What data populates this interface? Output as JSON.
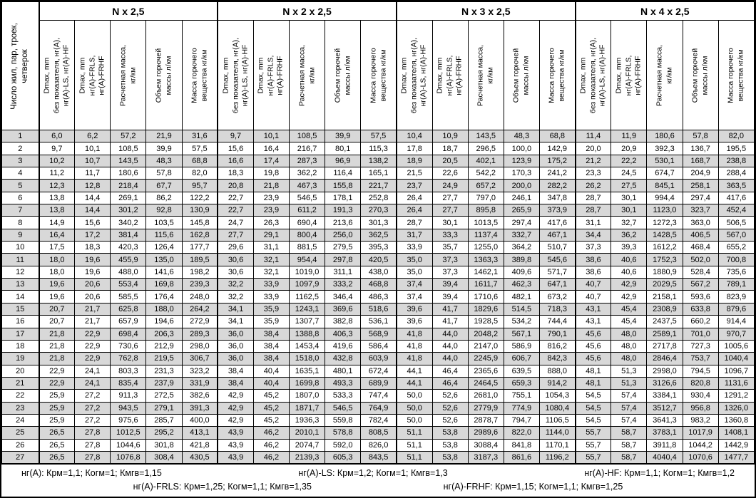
{
  "table": {
    "row_header_label": "Число жил, пар, троек,\nчетверок",
    "groups": [
      {
        "label": "N x 2,5"
      },
      {
        "label": "N x 2 x 2,5"
      },
      {
        "label": "N x 3 x 2,5"
      },
      {
        "label": "N x 4 x 2,5"
      }
    ],
    "sub_headers": [
      "Dmax, mm\nбез показателя, нг(А),\nнг(А)-LS, нг(А)-HF",
      "Dmax, mm\nнг(А)-FRLS,\nнг(А)-FRHF",
      "Расчетная масса,\nкг/км",
      "Объем горючей\nмассы л/км",
      "Масса горючего\nвещества кг/км"
    ],
    "rows": [
      {
        "num": "1",
        "values": [
          "6,0",
          "6,2",
          "57,2",
          "21,9",
          "31,6",
          "9,7",
          "10,1",
          "108,5",
          "39,9",
          "57,5",
          "10,4",
          "10,9",
          "143,5",
          "48,3",
          "68,8",
          "11,4",
          "11,9",
          "180,6",
          "57,8",
          "82,0"
        ]
      },
      {
        "num": "2",
        "values": [
          "9,7",
          "10,1",
          "108,5",
          "39,9",
          "57,5",
          "15,6",
          "16,4",
          "216,7",
          "80,1",
          "115,3",
          "17,8",
          "18,7",
          "296,5",
          "100,0",
          "142,9",
          "20,0",
          "20,9",
          "392,3",
          "136,7",
          "195,5"
        ]
      },
      {
        "num": "3",
        "values": [
          "10,2",
          "10,7",
          "143,5",
          "48,3",
          "68,8",
          "16,6",
          "17,4",
          "287,3",
          "96,9",
          "138,2",
          "18,9",
          "20,5",
          "402,1",
          "123,9",
          "175,2",
          "21,2",
          "22,2",
          "530,1",
          "168,7",
          "238,8"
        ]
      },
      {
        "num": "4",
        "values": [
          "11,2",
          "11,7",
          "180,6",
          "57,8",
          "82,0",
          "18,3",
          "19,8",
          "362,2",
          "116,4",
          "165,1",
          "21,5",
          "22,6",
          "542,2",
          "170,3",
          "241,2",
          "23,3",
          "24,5",
          "674,7",
          "204,9",
          "288,4"
        ]
      },
      {
        "num": "5",
        "values": [
          "12,3",
          "12,8",
          "218,4",
          "67,7",
          "95,7",
          "20,8",
          "21,8",
          "467,3",
          "155,8",
          "221,7",
          "23,7",
          "24,9",
          "657,2",
          "200,0",
          "282,2",
          "26,2",
          "27,5",
          "845,1",
          "258,1",
          "363,5"
        ]
      },
      {
        "num": "6",
        "values": [
          "13,8",
          "14,4",
          "269,1",
          "86,2",
          "122,2",
          "22,7",
          "23,9",
          "546,5",
          "178,1",
          "252,8",
          "26,4",
          "27,7",
          "797,0",
          "246,1",
          "347,8",
          "28,7",
          "30,1",
          "994,4",
          "297,4",
          "417,6"
        ]
      },
      {
        "num": "7",
        "values": [
          "13,8",
          "14,4",
          "301,2",
          "92,8",
          "130,9",
          "22,7",
          "23,9",
          "611,2",
          "191,3",
          "270,3",
          "26,4",
          "27,7",
          "895,8",
          "265,9",
          "373,9",
          "28,7",
          "30,1",
          "1123,0",
          "323,7",
          "452,4"
        ]
      },
      {
        "num": "8",
        "values": [
          "14,9",
          "15,6",
          "340,2",
          "103,5",
          "145,8",
          "24,7",
          "26,3",
          "690,4",
          "213,6",
          "301,3",
          "28,7",
          "30,1",
          "1013,5",
          "297,4",
          "417,6",
          "31,1",
          "32,7",
          "1272,3",
          "363,0",
          "506,5"
        ]
      },
      {
        "num": "9",
        "values": [
          "16,4",
          "17,2",
          "381,4",
          "115,6",
          "162,8",
          "27,7",
          "29,1",
          "800,4",
          "256,0",
          "362,5",
          "31,7",
          "33,3",
          "1137,4",
          "332,7",
          "467,1",
          "34,4",
          "36,2",
          "1428,5",
          "406,5",
          "567,0"
        ]
      },
      {
        "num": "10",
        "values": [
          "17,5",
          "18,3",
          "420,3",
          "126,4",
          "177,7",
          "29,6",
          "31,1",
          "881,5",
          "279,5",
          "395,3",
          "33,9",
          "35,7",
          "1255,0",
          "364,2",
          "510,7",
          "37,3",
          "39,3",
          "1612,2",
          "468,4",
          "655,2"
        ]
      },
      {
        "num": "11",
        "values": [
          "18,0",
          "19,6",
          "455,9",
          "135,0",
          "189,5",
          "30,6",
          "32,1",
          "954,4",
          "297,8",
          "420,5",
          "35,0",
          "37,3",
          "1363,3",
          "389,8",
          "545,6",
          "38,6",
          "40,6",
          "1752,3",
          "502,0",
          "700,8"
        ]
      },
      {
        "num": "12",
        "values": [
          "18,0",
          "19,6",
          "488,0",
          "141,6",
          "198,2",
          "30,6",
          "32,1",
          "1019,0",
          "311,1",
          "438,0",
          "35,0",
          "37,3",
          "1462,1",
          "409,6",
          "571,7",
          "38,6",
          "40,6",
          "1880,9",
          "528,4",
          "735,6"
        ]
      },
      {
        "num": "13",
        "values": [
          "19,6",
          "20,6",
          "553,4",
          "169,8",
          "239,3",
          "32,2",
          "33,9",
          "1097,9",
          "333,2",
          "468,8",
          "37,4",
          "39,4",
          "1611,7",
          "462,3",
          "647,1",
          "40,7",
          "42,9",
          "2029,5",
          "567,2",
          "789,1"
        ]
      },
      {
        "num": "14",
        "values": [
          "19,6",
          "20,6",
          "585,5",
          "176,4",
          "248,0",
          "32,2",
          "33,9",
          "1162,5",
          "346,4",
          "486,3",
          "37,4",
          "39,4",
          "1710,6",
          "482,1",
          "673,2",
          "40,7",
          "42,9",
          "2158,1",
          "593,6",
          "823,9"
        ]
      },
      {
        "num": "15",
        "values": [
          "20,7",
          "21,7",
          "625,8",
          "188,0",
          "264,2",
          "34,1",
          "35,9",
          "1243,1",
          "369,6",
          "518,6",
          "39,6",
          "41,7",
          "1829,6",
          "514,5",
          "718,3",
          "43,1",
          "45,4",
          "2308,9",
          "633,8",
          "879,6"
        ]
      },
      {
        "num": "16",
        "values": [
          "20,7",
          "21,7",
          "657,9",
          "194,6",
          "272,9",
          "34,1",
          "35,9",
          "1307,7",
          "382,8",
          "536,1",
          "39,6",
          "41,7",
          "1928,5",
          "534,2",
          "744,4",
          "43,1",
          "45,4",
          "2437,5",
          "660,2",
          "914,4"
        ]
      },
      {
        "num": "17",
        "values": [
          "21,8",
          "22,9",
          "698,4",
          "206,3",
          "289,3",
          "36,0",
          "38,4",
          "1388,8",
          "406,3",
          "568,9",
          "41,8",
          "44,0",
          "2048,2",
          "567,1",
          "790,1",
          "45,6",
          "48,0",
          "2589,1",
          "701,0",
          "970,7"
        ]
      },
      {
        "num": "18",
        "values": [
          "21,8",
          "22,9",
          "730,6",
          "212,9",
          "298,0",
          "36,0",
          "38,4",
          "1453,4",
          "419,6",
          "586,4",
          "41,8",
          "44,0",
          "2147,0",
          "586,9",
          "816,2",
          "45,6",
          "48,0",
          "2717,8",
          "727,3",
          "1005,6"
        ]
      },
      {
        "num": "19",
        "values": [
          "21,8",
          "22,9",
          "762,8",
          "219,5",
          "306,7",
          "36,0",
          "38,4",
          "1518,0",
          "432,8",
          "603,9",
          "41,8",
          "44,0",
          "2245,9",
          "606,7",
          "842,3",
          "45,6",
          "48,0",
          "2846,4",
          "753,7",
          "1040,4"
        ]
      },
      {
        "num": "20",
        "values": [
          "22,9",
          "24,1",
          "803,3",
          "231,3",
          "323,2",
          "38,4",
          "40,4",
          "1635,1",
          "480,1",
          "672,4",
          "44,1",
          "46,4",
          "2365,6",
          "639,5",
          "888,0",
          "48,1",
          "51,3",
          "2998,0",
          "794,5",
          "1096,7"
        ]
      },
      {
        "num": "21",
        "values": [
          "22,9",
          "24,1",
          "835,4",
          "237,9",
          "331,9",
          "38,4",
          "40,4",
          "1699,8",
          "493,3",
          "689,9",
          "44,1",
          "46,4",
          "2464,5",
          "659,3",
          "914,2",
          "48,1",
          "51,3",
          "3126,6",
          "820,8",
          "1131,6"
        ]
      },
      {
        "num": "22",
        "values": [
          "25,9",
          "27,2",
          "911,3",
          "272,5",
          "382,6",
          "42,9",
          "45,2",
          "1807,0",
          "533,3",
          "747,4",
          "50,0",
          "52,6",
          "2681,0",
          "755,1",
          "1054,3",
          "54,5",
          "57,4",
          "3384,1",
          "930,4",
          "1291,2"
        ]
      },
      {
        "num": "23",
        "values": [
          "25,9",
          "27,2",
          "943,5",
          "279,1",
          "391,3",
          "42,9",
          "45,2",
          "1871,7",
          "546,5",
          "764,9",
          "50,0",
          "52,6",
          "2779,9",
          "774,9",
          "1080,4",
          "54,5",
          "57,4",
          "3512,7",
          "956,8",
          "1326,0"
        ]
      },
      {
        "num": "24",
        "values": [
          "25,9",
          "27,2",
          "975,6",
          "285,7",
          "400,0",
          "42,9",
          "45,2",
          "1936,3",
          "559,8",
          "782,4",
          "50,0",
          "52,6",
          "2878,7",
          "794,7",
          "1106,5",
          "54,5",
          "57,4",
          "3641,3",
          "983,2",
          "1360,8"
        ]
      },
      {
        "num": "25",
        "values": [
          "26,5",
          "27,8",
          "1012,5",
          "295,2",
          "413,1",
          "43,9",
          "46,2",
          "2010,1",
          "578,8",
          "808,5",
          "51,1",
          "53,8",
          "2989,6",
          "822,0",
          "1144,0",
          "55,7",
          "58,7",
          "3783,1",
          "1017,9",
          "1408,1"
        ]
      },
      {
        "num": "26",
        "values": [
          "26,5",
          "27,8",
          "1044,6",
          "301,8",
          "421,8",
          "43,9",
          "46,2",
          "2074,7",
          "592,0",
          "826,0",
          "51,1",
          "53,8",
          "3088,4",
          "841,8",
          "1170,1",
          "55,7",
          "58,7",
          "3911,8",
          "1044,2",
          "1442,9"
        ]
      },
      {
        "num": "27",
        "values": [
          "26,5",
          "27,8",
          "1076,8",
          "308,4",
          "430,5",
          "43,9",
          "46,2",
          "2139,3",
          "605,3",
          "843,5",
          "51,1",
          "53,8",
          "3187,3",
          "861,6",
          "1196,2",
          "55,7",
          "58,7",
          "4040,4",
          "1070,6",
          "1477,7"
        ]
      }
    ],
    "footer_line1": [
      "нг(А): Крм=1,1;  Когм=1;  Кмгв=1,15",
      "нг(А)-LS: Крм=1,2;  Когм=1;  Кмгв=1,3",
      "нг(А)-HF: Крм=1,1;  Когм=1;  Кмгв=1,2"
    ],
    "footer_line2": [
      "нг(А)-FRLS: Крм=1,25;  Когм=1,1;  Кмгв=1,35",
      "нг(А)-FRHF: Крм=1,15;  Когм=1,1;  Кмгв=1,25"
    ],
    "colors": {
      "stripe": "#d8d8d8",
      "border": "#000000",
      "background": "#ffffff",
      "text": "#000000"
    }
  }
}
